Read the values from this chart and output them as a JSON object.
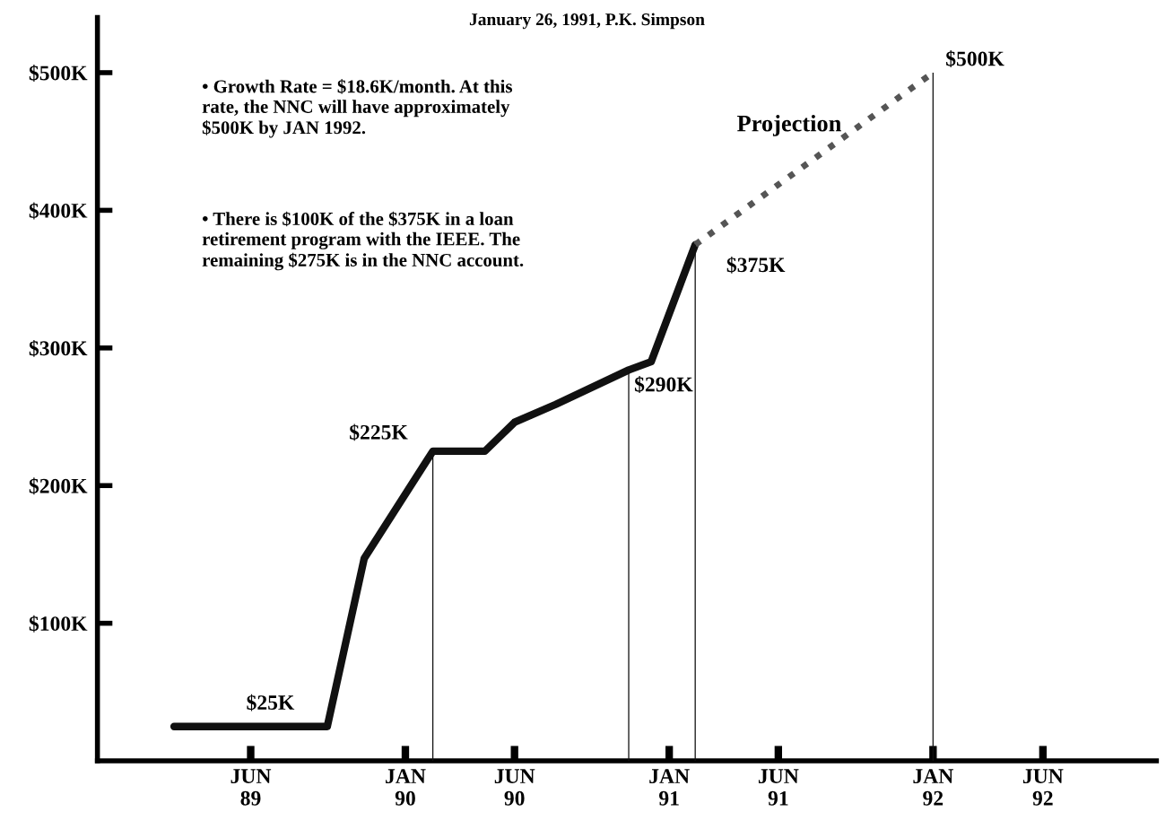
{
  "chart_data": {
    "type": "line",
    "title": "January 26, 1991, P.K. Simpson",
    "series": [
      {
        "x": [
          "1989-02-15",
          "1989-09-15",
          "1989-11-05",
          "1990-02-08",
          "1990-04-21",
          "1990-06-01",
          "1990-07-28",
          "1990-11-06",
          "1990-12-07",
          "1991-02-06"
        ],
        "values": [
          25,
          25,
          147,
          225,
          225,
          246,
          259,
          284,
          290,
          375
        ],
        "color": "#111111",
        "line_style": "solid"
      },
      {
        "name": "Projection",
        "x": [
          "1991-02-06",
          "1992-01-01"
        ],
        "values": [
          375,
          500
        ],
        "color": "#555555",
        "line_style": "dotted"
      },
      {
        "type": "bar",
        "x": [
          "1990-02-08",
          "1990-11-06",
          "1991-02-06",
          "1992-01-01"
        ],
        "values": [
          225,
          284,
          375,
          500
        ],
        "color": "#111111"
      }
    ],
    "xlim": [
      "1988-11-01",
      "1992-11-05"
    ],
    "ylim": [
      0,
      540
    ],
    "xticks": [
      {
        "value": "1989-06",
        "label": "JUN\n89"
      },
      {
        "value": "1990-01",
        "label": "JAN\n90"
      },
      {
        "value": "1990-06",
        "label": "JUN\n90"
      },
      {
        "value": "1991-01",
        "label": "JAN\n91"
      },
      {
        "value": "1991-06",
        "label": "JUN\n91"
      },
      {
        "value": "1992-01",
        "label": "JAN\n92"
      },
      {
        "value": "1992-06",
        "label": "JUN\n92"
      }
    ],
    "yticks": [
      {
        "value": 100,
        "label": "$100K"
      },
      {
        "value": 200,
        "label": "$200K"
      },
      {
        "value": 300,
        "label": "$300K"
      },
      {
        "value": 400,
        "label": "$400K"
      },
      {
        "value": 500,
        "label": "$500K"
      }
    ],
    "annotations": [
      "• Growth Rate = $18.6K/month. At this\nrate, the NNC will have approximately\n$500K by JAN 1992.",
      "• There is $100K of the $375K in a loan\nretirement program with the IEEE. The\nremaining $275K is in the NNC account.",
      {
        "text": "$25K",
        "x": "1989-07-12",
        "y": 25
      },
      {
        "text": "$225K",
        "x": "1990-02-08",
        "y": 225
      },
      {
        "text": "$290K",
        "x": "1990-12-07",
        "y": 290
      },
      {
        "text": "$375K",
        "x": "1991-02-06",
        "y": 375
      },
      {
        "text": "$500K",
        "x": "1992-01-01",
        "y": 500
      }
    ],
    "grid": false,
    "legend": false,
    "marker": "none"
  }
}
